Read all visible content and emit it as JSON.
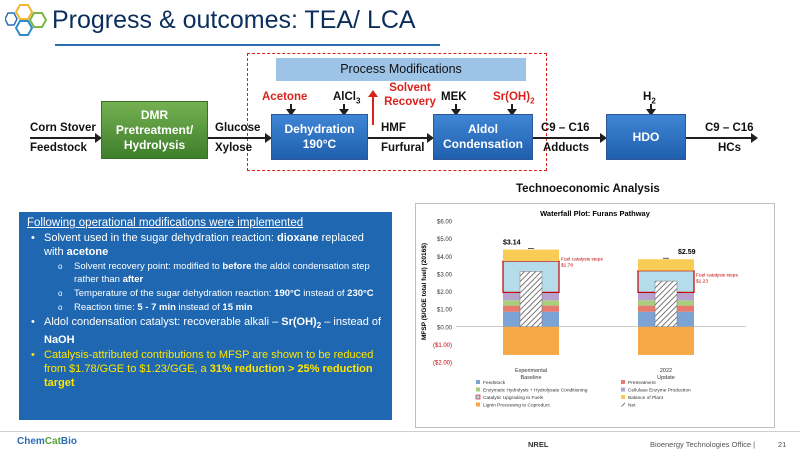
{
  "title": "Progress & outcomes: TEA/ LCA",
  "flow": {
    "banner": "Process Modifications",
    "feed_line1": "Corn Stover",
    "feed_line2": "Feedstock",
    "step1": "DMR Pretreatment/ Hydrolysis",
    "sugar_line1": "Glucose",
    "sugar_line2": "Xylose",
    "acetone": "Acetone",
    "alcl3": "AlCl",
    "alcl3_sub": "3",
    "solvent_recovery": "Solvent Recovery",
    "step2_line1": "Dehydration",
    "step2_line2": "190°C",
    "hmf": "HMF",
    "furfural": "Furfural",
    "mek": "MEK",
    "sroh": "Sr(OH)",
    "sroh_sub": "2",
    "step3_line1": "Aldol",
    "step3_line2": "Condensation",
    "adduct_line1": "C9 – C16",
    "adduct_line2": "Adducts",
    "h2": "H",
    "h2_sub": "2",
    "step4": "HDO",
    "hc_line1": "C9 – C16",
    "hc_line2": "HCs"
  },
  "panel": {
    "heading": "Following operational modifications were implemented",
    "b1_a": "Solvent used in the sugar dehydration reaction: ",
    "b1_b": "dioxane",
    "b1_c": " replaced with ",
    "b1_d": "acetone",
    "s1_a": "Solvent recovery point: modified to ",
    "s1_b": "before",
    "s1_c": " the aldol condensation step rather than ",
    "s1_d": "after",
    "s2_a": "Temperature of the sugar dehydration reaction: ",
    "s2_b": "190°C",
    "s2_c": " instead of ",
    "s2_d": "230°C",
    "s3_a": "Reaction time: ",
    "s3_b": "5 - 7 min",
    "s3_c": " instead of ",
    "s3_d": "15 min",
    "b2_a": "Aldol condensation catalyst: recoverable alkali – ",
    "b2_b": "Sr(OH)",
    "b2_sub": "2",
    "b2_c": " – instead of ",
    "b2_d": "NaOH",
    "b3_a": "Catalysis-attributed contributions to MFSP are shown to be reduced from $1.78/GGE to $1.23/GGE, a ",
    "b3_b": "31% reduction > 25% reduction target"
  },
  "tea_title": "Technoeconomic Analysis",
  "chart_data": {
    "type": "bar",
    "title": "Waterfall Plot: Furans Pathway",
    "ylabel": "MFSP ($/GGE total fuel) (2016$)",
    "ylim": [
      -2,
      6
    ],
    "yticks": [
      "$6.00",
      "$5.00",
      "$4.00",
      "$3.00",
      "$2.00",
      "$1.00",
      "$0.00",
      "($1.00)",
      "($2.00)"
    ],
    "categories": [
      "Experimental Baseline",
      "2022 Update"
    ],
    "category_lines": [
      [
        "Experimental",
        "Baseline"
      ],
      [
        "2022",
        "Update"
      ]
    ],
    "series": [
      {
        "name": "Feedstock",
        "color": "#7ba3d6",
        "values": [
          0.85,
          0.85
        ]
      },
      {
        "name": "Pretreatment",
        "color": "#e77a6e",
        "values": [
          0.35,
          0.35
        ]
      },
      {
        "name": "Enzymatic Hydrolysis + Hydrolysate Conditioning",
        "color": "#a9cf7c",
        "values": [
          0.3,
          0.3
        ]
      },
      {
        "name": "Cellulase Enzyme Production",
        "color": "#b6a2cf",
        "values": [
          0.45,
          0.45
        ]
      },
      {
        "name": "Catalytic Upgrading to Fuels",
        "color": "#b5dcea",
        "values": [
          1.78,
          1.23
        ]
      },
      {
        "name": "Balance of Plant",
        "color": "#f9cc55",
        "values": [
          0.65,
          0.65
        ]
      },
      {
        "name": "Lignin Processing to Coproduct",
        "color": "#f7a94a",
        "values": [
          -1.6,
          -1.6
        ]
      },
      {
        "name": "Net",
        "color": "#ffffff",
        "values": [
          3.14,
          2.59
        ]
      }
    ],
    "totals": [
      "$3.14",
      "$2.59"
    ],
    "annotations": [
      {
        "title": "Fuel catalysis steps",
        "value": "$1.78"
      },
      {
        "title": "Fuel catalysis steps",
        "value": "$1.23"
      }
    ],
    "legend": "bottom"
  },
  "footer": {
    "brand_a": "Chem",
    "brand_b": "Cat",
    "brand_c": "Bio",
    "center": "NREL",
    "office": "Bioenergy Technologies Office  |",
    "page": "21"
  }
}
